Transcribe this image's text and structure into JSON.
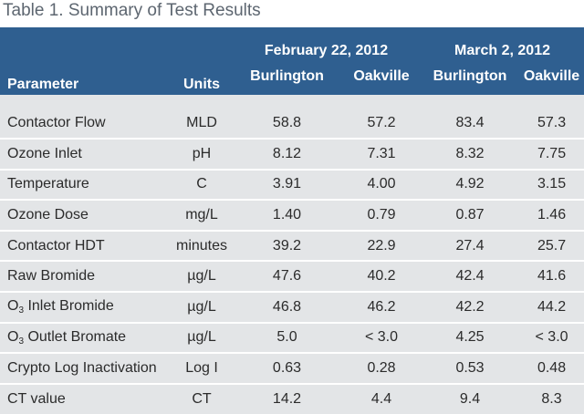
{
  "caption": "Table 1. Summary of Test Results",
  "header": {
    "parameter": "Parameter",
    "units": "Units",
    "date1": "February 22, 2012",
    "date2": "March 2, 2012",
    "site1": "Burlington",
    "site2": "Oakville"
  },
  "rows": [
    {
      "param": "Contactor Flow",
      "units": "MLD",
      "b1": "58.8",
      "o1": "57.2",
      "b2": "83.4",
      "o2": "57.3"
    },
    {
      "param": "Ozone Inlet",
      "units": "pH",
      "b1": "8.12",
      "o1": "7.31",
      "b2": "8.32",
      "o2": "7.75"
    },
    {
      "param": "Temperature",
      "units": "C",
      "b1": "3.91",
      "o1": "4.00",
      "b2": "4.92",
      "o2": "3.15"
    },
    {
      "param": "Ozone Dose",
      "units": "mg/L",
      "b1": "1.40",
      "o1": "0.79",
      "b2": "0.87",
      "o2": "1.46"
    },
    {
      "param": "Contactor HDT",
      "units": "minutes",
      "b1": "39.2",
      "o1": "22.9",
      "b2": "27.4",
      "o2": "25.7"
    },
    {
      "param": "Raw Bromide",
      "units": "µg/L",
      "b1": "47.6",
      "o1": "40.2",
      "b2": "42.4",
      "o2": "41.6"
    },
    {
      "param_prefix": "O",
      "param_sub": "3",
      "param": " Inlet Bromide",
      "units": "µg/L",
      "b1": "46.8",
      "o1": "46.2",
      "b2": "42.2",
      "o2": "44.2"
    },
    {
      "param_prefix": "O",
      "param_sub": "3",
      "param": " Outlet Bromate",
      "units": "µg/L",
      "b1": "5.0",
      "o1": "< 3.0",
      "b2": "4.25",
      "o2": "< 3.0"
    },
    {
      "param": "Crypto Log Inactivation",
      "units": "Log I",
      "b1": "0.63",
      "o1": "0.28",
      "b2": "0.53",
      "o2": "0.48"
    },
    {
      "param": "CT value",
      "units": "CT",
      "b1": "14.2",
      "o1": "4.4",
      "b2": "9.4",
      "o2": "8.3"
    }
  ]
}
